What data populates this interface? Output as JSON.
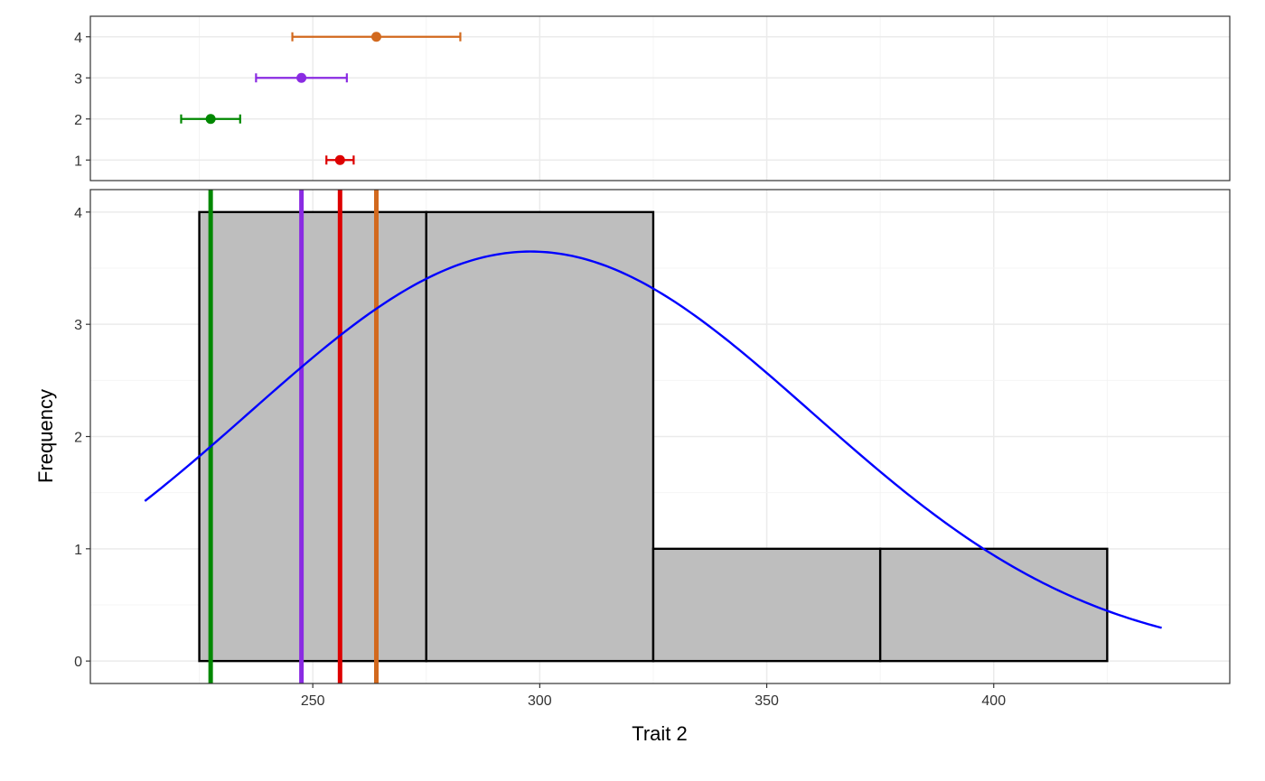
{
  "chart_data": [
    {
      "type": "errorbar",
      "panel": "top",
      "xlim": [
        201,
        452
      ],
      "ylim": [
        0.5,
        4.5
      ],
      "yticks": [
        1,
        2,
        3,
        4
      ],
      "grid": true,
      "series": [
        {
          "group": "1",
          "mean": 256,
          "low": 253,
          "high": 259,
          "color": "#dd0000"
        },
        {
          "group": "2",
          "mean": 227.5,
          "low": 221,
          "high": 234,
          "color": "#008800"
        },
        {
          "group": "3",
          "mean": 247.5,
          "low": 237.5,
          "high": 257.5,
          "color": "#8a2be2"
        },
        {
          "group": "4",
          "mean": 264,
          "low": 245.5,
          "high": 282.5,
          "color": "#d2691e"
        }
      ]
    },
    {
      "type": "histogram",
      "panel": "bottom",
      "xlabel": "Trait 2",
      "ylabel": "Frequency",
      "xlim": [
        201,
        452
      ],
      "ylim": [
        -0.2,
        4.2
      ],
      "xticks": [
        250,
        300,
        350,
        400
      ],
      "yticks": [
        0,
        1,
        2,
        3,
        4
      ],
      "grid": true,
      "bins": [
        {
          "x0": 225,
          "x1": 275,
          "count": 4
        },
        {
          "x0": 275,
          "x1": 325,
          "count": 4
        },
        {
          "x0": 325,
          "x1": 375,
          "count": 1
        },
        {
          "x0": 375,
          "x1": 425,
          "count": 1
        }
      ],
      "bin_fill": "#bebebe",
      "vlines": [
        {
          "group": "2",
          "x": 227.5,
          "color": "#008800"
        },
        {
          "group": "3",
          "x": 247.5,
          "color": "#8a2be2"
        },
        {
          "group": "1",
          "x": 256,
          "color": "#dd0000"
        },
        {
          "group": "4",
          "x": 264,
          "color": "#d2691e"
        }
      ],
      "density_curve": {
        "color": "#0000ff",
        "mean": 298,
        "sd": 62,
        "scale": 567,
        "x_range": [
          213,
          437
        ]
      }
    }
  ]
}
